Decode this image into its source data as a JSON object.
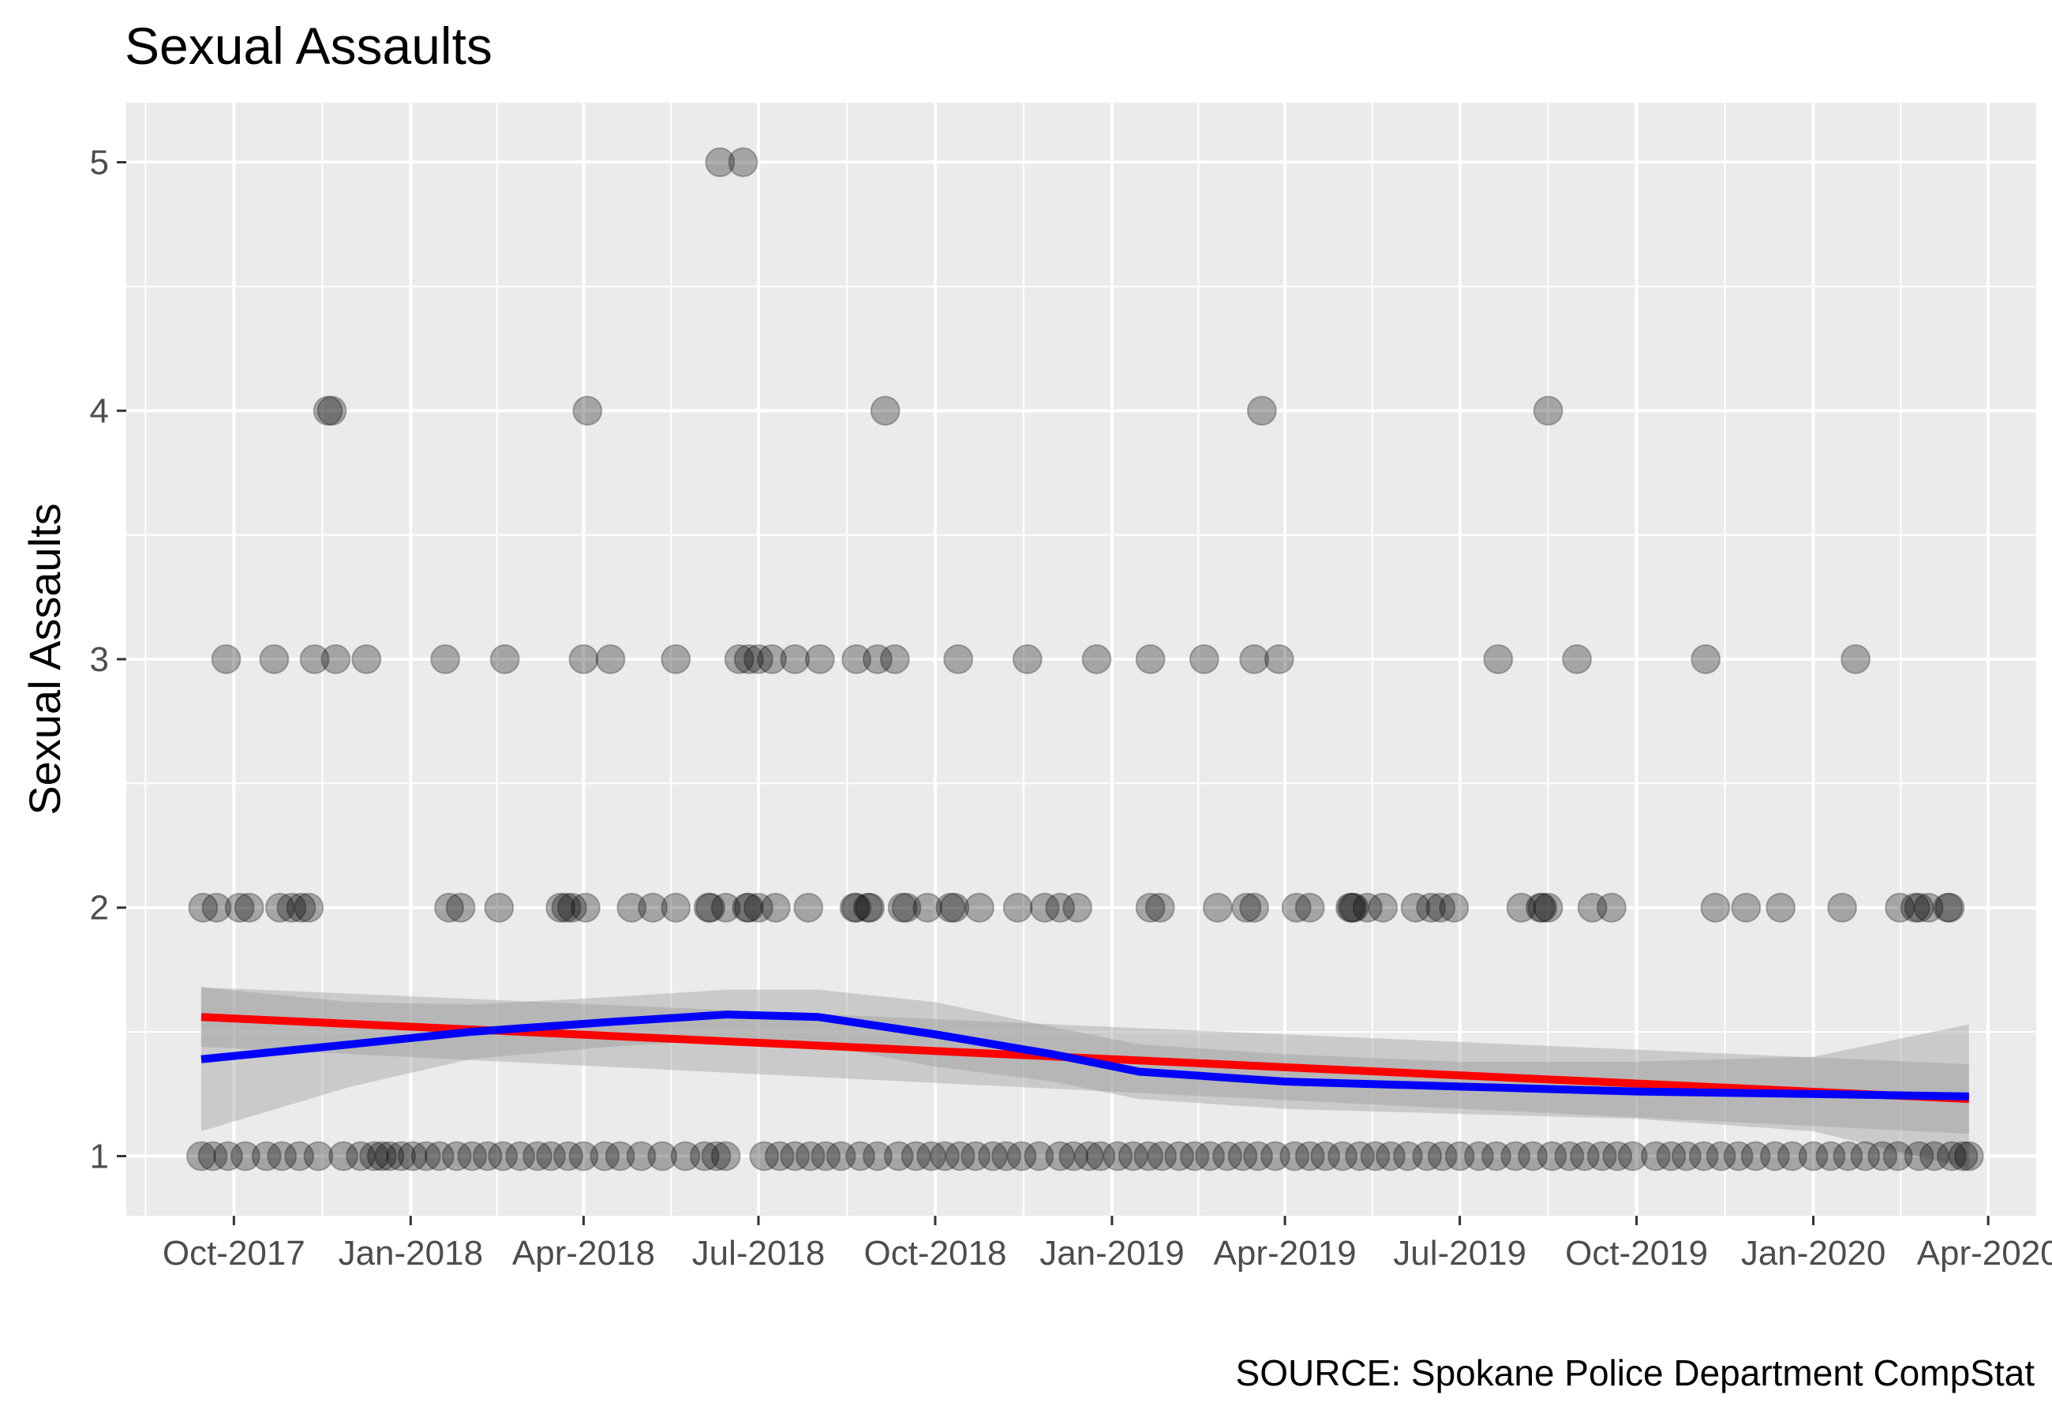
{
  "chart_data": {
    "type": "scatter",
    "title": "Sexual Assaults",
    "caption": "SOURCE: Spokane Police Department CompStat",
    "ylabel": "Sexual Assaults",
    "xlabel": "",
    "x_range": [
      "2017-08-06",
      "2020-04-26"
    ],
    "ylim": [
      0.76,
      5.24
    ],
    "x_ticks": [
      {
        "date": "2017-10-01",
        "label": "Oct-2017"
      },
      {
        "date": "2018-01-01",
        "label": "Jan-2018"
      },
      {
        "date": "2018-04-01",
        "label": "Apr-2018"
      },
      {
        "date": "2018-07-01",
        "label": "Jul-2018"
      },
      {
        "date": "2018-10-01",
        "label": "Oct-2018"
      },
      {
        "date": "2019-01-01",
        "label": "Jan-2019"
      },
      {
        "date": "2019-04-01",
        "label": "Apr-2019"
      },
      {
        "date": "2019-07-01",
        "label": "Jul-2019"
      },
      {
        "date": "2019-10-01",
        "label": "Oct-2019"
      },
      {
        "date": "2020-01-01",
        "label": "Jan-2020"
      },
      {
        "date": "2020-04-01",
        "label": "Apr-2020"
      }
    ],
    "y_ticks": [
      1,
      2,
      3,
      4,
      5
    ],
    "grid": true,
    "point_color": "#000000",
    "point_opacity": 0.3,
    "background_color": "#ebebeb",
    "grid_color": "#ffffff",
    "series": [
      {
        "kind": "points",
        "x": [
          "2017-09-15",
          "2017-09-22",
          "2017-10-04",
          "2017-10-09",
          "2018-01-21",
          "2018-02-16",
          "2018-03-23",
          "2018-03-26",
          "2018-04-02",
          "2018-04-26",
          "2018-05-07",
          "2018-06-14",
          "2018-06-25",
          "2018-06-26",
          "2018-07-10",
          "2018-07-27",
          "2018-08-20",
          "2018-08-21",
          "2018-08-28",
          "2018-09-27",
          "2018-10-09",
          "2018-10-24",
          "2018-11-27",
          "2018-12-14",
          "2019-01-26",
          "2019-02-25",
          "2019-03-12",
          "2019-04-07",
          "2019-04-14",
          "2019-05-05",
          "2019-05-07",
          "2019-05-14",
          "2019-05-22",
          "2019-06-16",
          "2019-06-21",
          "2019-06-28",
          "2019-08-02",
          "2019-08-12",
          "2019-08-13",
          "2019-09-08",
          "2020-01-16",
          "2020-02-15",
          "2020-02-23",
          "2020-02-25",
          "2020-03-01",
          "2020-03-11",
          "2017-09-27",
          "2017-10-22",
          "2017-11-12",
          "2017-11-23",
          "2017-12-09",
          "2018-01-19",
          "2018-02-19",
          "2018-04-01",
          "2018-04-15",
          "2018-05-19",
          "2018-06-21",
          "2018-06-26",
          "2018-07-01",
          "2018-07-08",
          "2018-07-20",
          "2018-08-02",
          "2018-08-21",
          "2018-09-01",
          "2018-09-10",
          "2018-10-13",
          "2018-11-18",
          "2018-12-24",
          "2019-01-21",
          "2019-02-18",
          "2019-03-16",
          "2019-03-29",
          "2019-07-21",
          "2019-08-31",
          "2019-11-06",
          "2020-01-23",
          "2017-10-25",
          "2017-10-31",
          "2017-11-05",
          "2017-11-09",
          "2018-01-27",
          "2018-03-20",
          "2018-05-19",
          "2018-06-05",
          "2018-06-06",
          "2018-07-01",
          "2018-08-27",
          "2018-09-14",
          "2018-09-16",
          "2018-10-11",
          "2018-11-13",
          "2018-12-05",
          "2019-01-21",
          "2019-03-16",
          "2019-05-06",
          "2019-06-08",
          "2019-08-16",
          "2019-09-18",
          "2019-11-11",
          "2019-11-27",
          "2019-12-15",
          "2020-03-12",
          "2017-11-21",
          "2017-11-19",
          "2018-04-03",
          "2018-09-05",
          "2019-03-20",
          "2019-08-16",
          "2018-06-11",
          "2018-06-23"
        ],
        "y": [
          2,
          2,
          2,
          2,
          2,
          2,
          2,
          2,
          2,
          2,
          2,
          2,
          2,
          2,
          2,
          2,
          2,
          2,
          2,
          2,
          2,
          2,
          2,
          2,
          2,
          2,
          2,
          2,
          2,
          2,
          2,
          2,
          2,
          2,
          2,
          2,
          2,
          2,
          2,
          2,
          2,
          2,
          2,
          2,
          2,
          2,
          3,
          3,
          3,
          3,
          3,
          3,
          3,
          3,
          3,
          3,
          3,
          3,
          3,
          3,
          3,
          3,
          3,
          3,
          3,
          3,
          3,
          3,
          3,
          3,
          3,
          3,
          3,
          3,
          3,
          3,
          2,
          2,
          2,
          2,
          2,
          2,
          2,
          2,
          2,
          2,
          2,
          2,
          2,
          2,
          2,
          2,
          2,
          2,
          2,
          2,
          2,
          2,
          2,
          2,
          2,
          2,
          4,
          4,
          4,
          4,
          4,
          4,
          5,
          5
        ]
      },
      {
        "kind": "points",
        "x": [
          "2017-09-14",
          "2017-09-20",
          "2017-09-28",
          "2017-10-07",
          "2017-10-18",
          "2017-10-26",
          "2017-11-04",
          "2017-11-14",
          "2017-11-27",
          "2017-12-06",
          "2017-12-13",
          "2017-12-17",
          "2017-12-21",
          "2017-12-27",
          "2018-01-02",
          "2018-01-09",
          "2018-01-16",
          "2018-01-25",
          "2018-02-02",
          "2018-02-10",
          "2018-02-18",
          "2018-02-27",
          "2018-03-08",
          "2018-03-15",
          "2018-03-24",
          "2018-04-01",
          "2018-04-12",
          "2018-04-20",
          "2018-05-01",
          "2018-05-12",
          "2018-05-24",
          "2018-06-03",
          "2018-06-09",
          "2018-06-14",
          "2018-07-04",
          "2018-07-12",
          "2018-07-20",
          "2018-07-28",
          "2018-08-05",
          "2018-08-13",
          "2018-08-23",
          "2018-09-01",
          "2018-09-12",
          "2018-09-21",
          "2018-09-29",
          "2018-10-06",
          "2018-10-14",
          "2018-10-22",
          "2018-10-31",
          "2018-11-07",
          "2018-11-15",
          "2018-11-24",
          "2018-12-05",
          "2018-12-12",
          "2018-12-20",
          "2018-12-26",
          "2019-01-04",
          "2019-01-12",
          "2019-01-20",
          "2019-01-27",
          "2019-02-05",
          "2019-02-13",
          "2019-02-21",
          "2019-03-02",
          "2019-03-10",
          "2019-03-18",
          "2019-03-27",
          "2019-04-06",
          "2019-04-14",
          "2019-04-22",
          "2019-05-01",
          "2019-05-10",
          "2019-05-18",
          "2019-05-26",
          "2019-06-04",
          "2019-06-14",
          "2019-06-22",
          "2019-07-01",
          "2019-07-11",
          "2019-07-20",
          "2019-07-30",
          "2019-08-08",
          "2019-08-18",
          "2019-08-27",
          "2019-09-04",
          "2019-09-13",
          "2019-09-21",
          "2019-09-29",
          "2019-10-11",
          "2019-10-19",
          "2019-10-27",
          "2019-11-05",
          "2019-11-14",
          "2019-11-23",
          "2019-12-02",
          "2019-12-12",
          "2019-12-21",
          "2020-01-01",
          "2020-01-10",
          "2020-01-19",
          "2020-01-28",
          "2020-02-06",
          "2020-02-14",
          "2020-02-25",
          "2020-03-04",
          "2020-03-13",
          "2020-03-19",
          "2020-03-22"
        ],
        "y": [
          1,
          1,
          1,
          1,
          1,
          1,
          1,
          1,
          1,
          1,
          1,
          1,
          1,
          1,
          1,
          1,
          1,
          1,
          1,
          1,
          1,
          1,
          1,
          1,
          1,
          1,
          1,
          1,
          1,
          1,
          1,
          1,
          1,
          1,
          1,
          1,
          1,
          1,
          1,
          1,
          1,
          1,
          1,
          1,
          1,
          1,
          1,
          1,
          1,
          1,
          1,
          1,
          1,
          1,
          1,
          1,
          1,
          1,
          1,
          1,
          1,
          1,
          1,
          1,
          1,
          1,
          1,
          1,
          1,
          1,
          1,
          1,
          1,
          1,
          1,
          1,
          1,
          1,
          1,
          1,
          1,
          1,
          1,
          1,
          1,
          1,
          1,
          1,
          1,
          1,
          1,
          1,
          1,
          1,
          1,
          1,
          1,
          1,
          1,
          1,
          1,
          1,
          1,
          1,
          1,
          1,
          1,
          1
        ]
      },
      {
        "kind": "line",
        "x": [
          "2017-09-14",
          "2020-03-22"
        ],
        "y": [
          1.56,
          1.23
        ],
        "color": "#ff0000",
        "ci_upper": [
          1.68,
          1.37
        ],
        "ci_lower": [
          1.44,
          1.09
        ]
      },
      {
        "kind": "line",
        "x": [
          "2017-09-14",
          "2017-12-01",
          "2018-02-01",
          "2018-04-15",
          "2018-06-15",
          "2018-08-01",
          "2018-10-01",
          "2018-12-01",
          "2019-01-15",
          "2019-04-01",
          "2019-07-01",
          "2019-10-01",
          "2020-01-01",
          "2020-03-22"
        ],
        "y": [
          1.39,
          1.45,
          1.5,
          1.54,
          1.57,
          1.56,
          1.49,
          1.41,
          1.34,
          1.3,
          1.28,
          1.26,
          1.25,
          1.24
        ],
        "color": "#0000ff",
        "ci_upper": [
          1.68,
          1.62,
          1.61,
          1.64,
          1.67,
          1.67,
          1.62,
          1.52,
          1.45,
          1.41,
          1.38,
          1.38,
          1.4,
          1.53
        ],
        "ci_lower": [
          1.1,
          1.28,
          1.39,
          1.44,
          1.47,
          1.45,
          1.36,
          1.3,
          1.23,
          1.19,
          1.17,
          1.15,
          1.1,
          0.95
        ]
      }
    ]
  }
}
